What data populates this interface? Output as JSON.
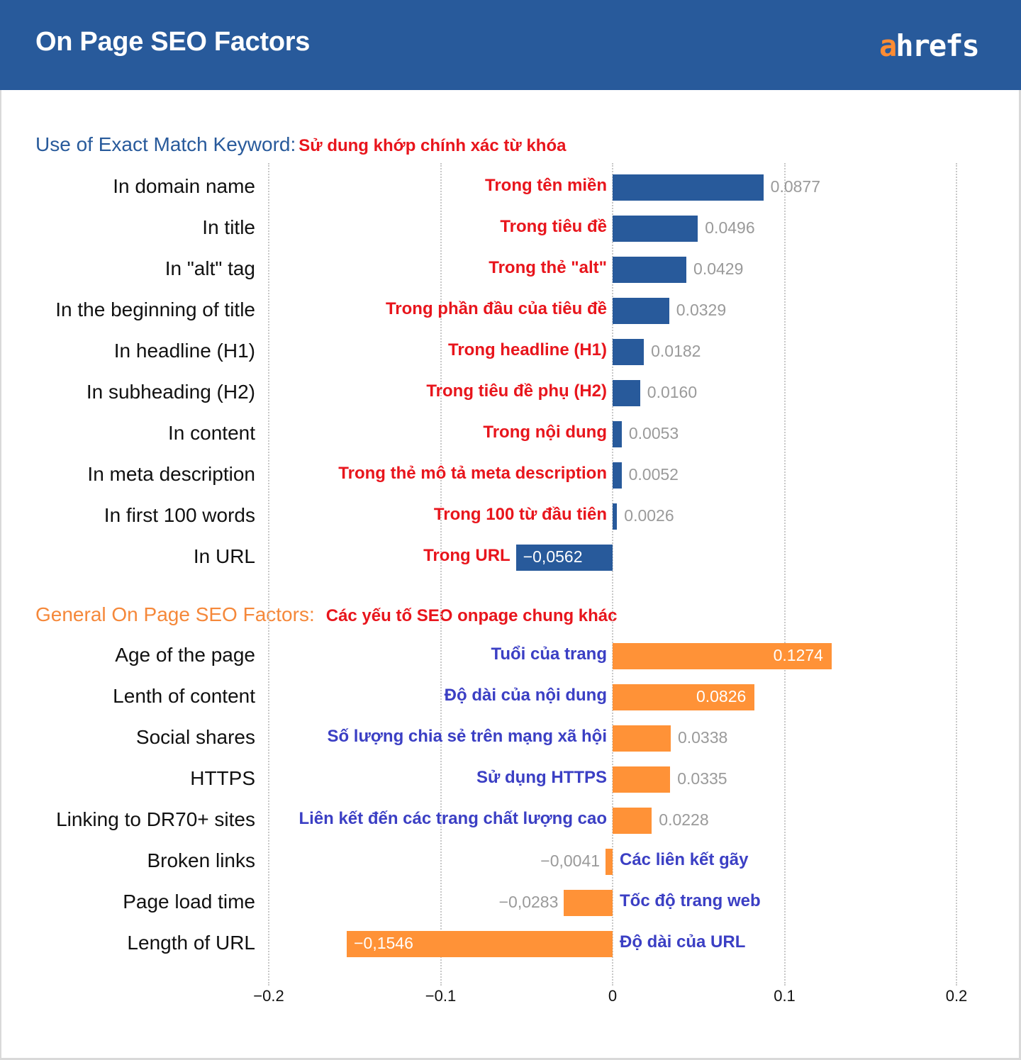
{
  "header": {
    "title": "On Page SEO Factors",
    "logo_accent": "a",
    "logo_rest": "hrefs"
  },
  "colors": {
    "header_bg": "#285A9B",
    "blue_bar": "#285A9B",
    "orange_bar": "#FF9237",
    "red_label": "#E8151C",
    "blue_label": "#3B3FC4",
    "orange_title": "#F5883A"
  },
  "chart_data": [
    {
      "type": "bar",
      "orientation": "horizontal",
      "title": "Use of Exact Match Keyword:",
      "title_vi": "Sử dung khớp chính xác từ khóa",
      "categories": [
        "In domain name",
        "In title",
        "In \"alt\" tag",
        "In the beginning of title",
        "In headline (H1)",
        "In subheading (H2)",
        "In content",
        "In meta description",
        "In first 100 words",
        "In URL"
      ],
      "categories_vi": [
        "Trong tên miền",
        "Trong tiêu đề",
        "Trong thẻ \"alt\"",
        "Trong phần đầu của tiêu đề",
        "Trong headline (H1)",
        "Trong tiêu đề phụ (H2)",
        "Trong nội dung",
        "Trong thẻ mô tả meta description",
        "Trong 100 từ đầu tiên",
        "Trong URL"
      ],
      "values": [
        0.0877,
        0.0496,
        0.0429,
        0.0329,
        0.0182,
        0.016,
        0.0053,
        0.0052,
        0.0026,
        -0.0562
      ],
      "value_labels": [
        "0.0877",
        "0.0496",
        "0.0429",
        "0.0329",
        "0.0182",
        "0.0160",
        "0.0053",
        "0.0052",
        "0.0026",
        "−0,0562"
      ],
      "xlim": [
        -0.2,
        0.2
      ]
    },
    {
      "type": "bar",
      "orientation": "horizontal",
      "title": "General On Page SEO Factors:",
      "title_vi": "Các yếu tố SEO onpage chung khác",
      "categories": [
        "Age of the page",
        "Lenth of content",
        "Social shares",
        "HTTPS",
        "Linking to DR70+ sites",
        "Broken links",
        "Page load time",
        "Length of URL"
      ],
      "categories_vi": [
        "Tuổi của trang",
        "Độ dài của nội dung",
        "Số lượng chia sẻ trên mạng xã hội",
        "Sử dụng HTTPS",
        "Liên kết đến các trang chất lượng cao",
        "Các liên kết gãy",
        "Tốc độ trang web",
        "Độ dài của URL"
      ],
      "values": [
        0.1274,
        0.0826,
        0.0338,
        0.0335,
        0.0228,
        -0.0041,
        -0.0283,
        -0.1546
      ],
      "value_labels": [
        "0.1274",
        "0.0826",
        "0.0338",
        "0.0335",
        "0.0228",
        "−0,0041",
        "−0,0283",
        "−0,1546"
      ],
      "xlim": [
        -0.2,
        0.2
      ]
    }
  ],
  "axis": {
    "ticks": [
      -0.2,
      -0.1,
      0,
      0.1,
      0.2
    ],
    "tick_labels": [
      "−0.2",
      "−0.1",
      "0",
      "0.1",
      "0.2"
    ],
    "grid": true
  }
}
